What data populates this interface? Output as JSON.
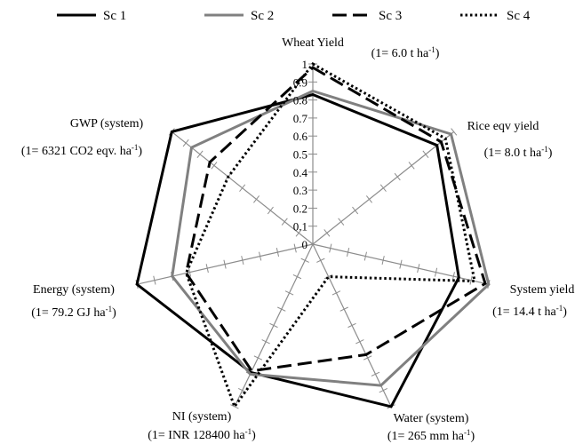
{
  "chart_data": {
    "type": "radar",
    "title": "",
    "axes": [
      {
        "name": "Wheat Yield",
        "unit": "(1= 6.0 t ha-1)",
        "unit_pre": "(1= 6.0 t ha",
        "unit_sup": "-1",
        "unit_post": ")"
      },
      {
        "name": "Rice eqv yield",
        "unit": "(1= 8.0 t ha-1)",
        "unit_pre": "(1= 8.0 t ha",
        "unit_sup": "-1",
        "unit_post": ")"
      },
      {
        "name": "System yield",
        "unit": "(1= 14.4 t ha-1)",
        "unit_pre": "(1= 14.4 t ha",
        "unit_sup": "-1",
        "unit_post": ")"
      },
      {
        "name": "Water (system)",
        "unit": "(1= 265 mm ha-1)",
        "unit_pre": "(1= 265 mm ha",
        "unit_sup": "-1",
        "unit_post": ")"
      },
      {
        "name": "NI (system)",
        "unit": "(1= INR 128400 ha-1)",
        "unit_pre": "(1= INR 128400 ha",
        "unit_sup": "-1",
        "unit_post": ")"
      },
      {
        "name": "Energy (system)",
        "unit": "(1= 79.2 GJ ha-1)",
        "unit_pre": "(1= 79.2 GJ ha",
        "unit_sup": "-1",
        "unit_post": ")"
      },
      {
        "name": "GWP (system)",
        "unit": "(1= 6321 CO2 eqv. ha-1)",
        "unit_pre": "(1= 6321 CO2 eqv. ha",
        "unit_sup": "-1",
        "unit_post": ")"
      }
    ],
    "scale": {
      "min": 0,
      "max": 1,
      "step": 0.1
    },
    "tick_labels": [
      "0",
      "0.1",
      "0.2",
      "0.3",
      "0.4",
      "0.5",
      "0.6",
      "0.7",
      "0.8",
      "0.9",
      "1"
    ],
    "legend_position": "top",
    "series": [
      {
        "name": "Sc 1",
        "color": "#000000",
        "style": "solid",
        "values": [
          0.83,
          0.88,
          0.83,
          1.0,
          0.79,
          1.0,
          1.0
        ]
      },
      {
        "name": "Sc 2",
        "color": "#808080",
        "style": "solid",
        "values": [
          0.85,
          0.98,
          1.0,
          0.87,
          0.8,
          0.8,
          0.86
        ]
      },
      {
        "name": "Sc 3",
        "color": "#000000",
        "style": "dashed",
        "values": [
          0.98,
          0.91,
          0.98,
          0.68,
          0.78,
          0.72,
          0.73
        ]
      },
      {
        "name": "Sc 4",
        "color": "#000000",
        "style": "dotted",
        "values": [
          1.0,
          0.94,
          0.92,
          0.2,
          1.0,
          0.72,
          0.6
        ]
      }
    ]
  }
}
